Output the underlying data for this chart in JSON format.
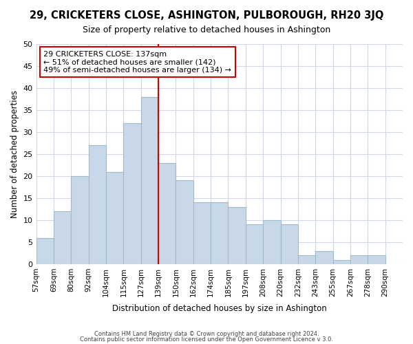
{
  "title": "29, CRICKETERS CLOSE, ASHINGTON, PULBOROUGH, RH20 3JQ",
  "subtitle": "Size of property relative to detached houses in Ashington",
  "xlabel": "Distribution of detached houses by size in Ashington",
  "ylabel": "Number of detached properties",
  "footer_line1": "Contains HM Land Registry data © Crown copyright and database right 2024.",
  "footer_line2": "Contains public sector information licensed under the Open Government Licence v 3.0.",
  "bin_labels": [
    "57sqm",
    "69sqm",
    "80sqm",
    "92sqm",
    "104sqm",
    "115sqm",
    "127sqm",
    "139sqm",
    "150sqm",
    "162sqm",
    "174sqm",
    "185sqm",
    "197sqm",
    "208sqm",
    "220sqm",
    "232sqm",
    "243sqm",
    "255sqm",
    "267sqm",
    "278sqm",
    "290sqm"
  ],
  "bar_heights": [
    6,
    12,
    20,
    27,
    21,
    32,
    38,
    23,
    19,
    14,
    14,
    13,
    9,
    10,
    9,
    2,
    3,
    1,
    2,
    2
  ],
  "bar_color": "#c8d8e8",
  "bar_edge_color": "#a0b8cc",
  "reference_line_color": "#cc0000",
  "annotation_text_line1": "29 CRICKETERS CLOSE: 137sqm",
  "annotation_text_line2": "← 51% of detached houses are smaller (142)",
  "annotation_text_line3": "49% of semi-detached houses are larger (134) →",
  "annotation_box_color": "#ffffff",
  "annotation_box_edge_color": "#cc0000",
  "ylim": [
    0,
    50
  ],
  "yticks": [
    0,
    5,
    10,
    15,
    20,
    25,
    30,
    35,
    40,
    45,
    50
  ],
  "background_color": "#ffffff",
  "grid_color": "#d0d8e8"
}
